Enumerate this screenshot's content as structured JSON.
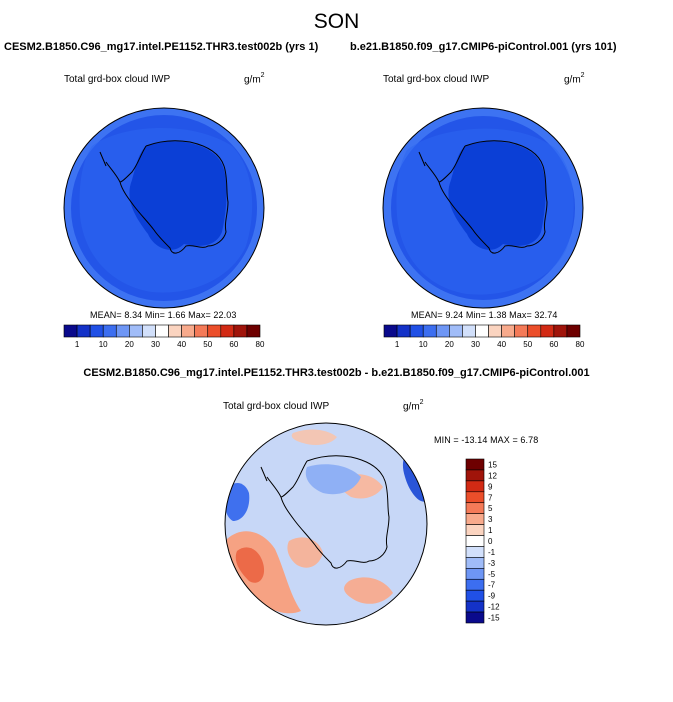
{
  "title": "SON",
  "panels": [
    {
      "case_name": "CESM2.B1850.C96_mg17.intel.PE1152.THR3.test002b (yrs 1)",
      "field_label": "Total grd-box cloud IWP",
      "units": "g/m",
      "units_exp": "2",
      "stats": "MEAN=   8.34  Min=   1.66  Max=  22.03"
    },
    {
      "case_name": "b.e21.B1850.f09_g17.CMIP6-piControl.001 (yrs 101)",
      "field_label": "Total grd-box cloud IWP",
      "units": "g/m",
      "units_exp": "2",
      "stats": "MEAN=   9.24  Min=   1.38  Max=  32.74"
    }
  ],
  "abs_colorbar": {
    "colors": [
      "#0a0a8c",
      "#1432c8",
      "#2050e6",
      "#3c6ef0",
      "#6e96f5",
      "#a0bcf8",
      "#d2e0fb",
      "#ffffff",
      "#fbd4c0",
      "#f8aa8c",
      "#f47a58",
      "#eb4e2a",
      "#d22a14",
      "#a0140a",
      "#6e0000"
    ],
    "tick_labels": [
      "1",
      "10",
      "20",
      "30",
      "40",
      "50",
      "60",
      "80"
    ]
  },
  "diff": {
    "title": "CESM2.B1850.C96_mg17.intel.PE1152.THR3.test002b - b.e21.B1850.f09_g17.CMIP6-piControl.001",
    "field_label": "Total grd-box cloud IWP",
    "units": "g/m",
    "units_exp": "2",
    "minmax": "MIN = -13.14 MAX =   6.78",
    "colorbar": {
      "colors": [
        "#6e0000",
        "#a0140a",
        "#d22a14",
        "#eb4e2a",
        "#f47a58",
        "#f8aa8c",
        "#fbd4c0",
        "#ffffff",
        "#d2e0fb",
        "#a0bcf8",
        "#6e96f5",
        "#3c6ef0",
        "#2050e6",
        "#1432c8",
        "#0a0a8c"
      ],
      "tick_labels": [
        "15",
        "12",
        "9",
        "7",
        "5",
        "3",
        "1",
        "0",
        "-1",
        "-3",
        "-5",
        "-7",
        "-9",
        "-12",
        "-15"
      ]
    }
  },
  "colors": {
    "abs_ocean": "#2355e8",
    "abs_land": "#0b3fd6",
    "abs_band": "#2e66f0",
    "abs_edge": "#3d73f2",
    "diff_base": "#c7d7f7",
    "coastline": "#000000"
  }
}
